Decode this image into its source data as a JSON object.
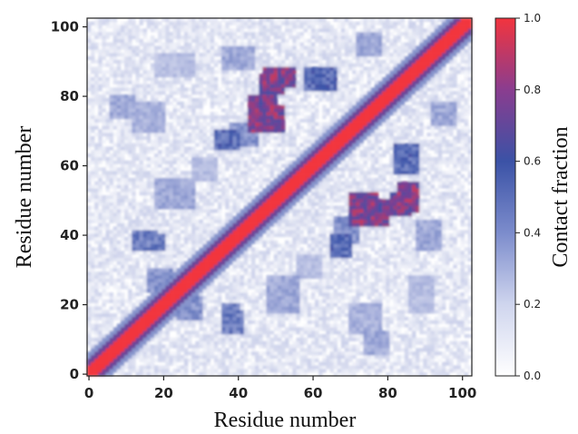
{
  "chart_data": {
    "type": "heatmap",
    "title": "",
    "xlabel": "Residue number",
    "ylabel": "Residue number",
    "xlim": [
      0,
      103
    ],
    "ylim": [
      0,
      103
    ],
    "xticks": [
      "0",
      "20",
      "40",
      "60",
      "80",
      "100"
    ],
    "yticks": [
      "0",
      "20",
      "40",
      "60",
      "80",
      "100"
    ],
    "colorbar": {
      "label": "Contact fraction",
      "range": [
        0.0,
        1.0
      ],
      "ticks": [
        "0.0",
        "0.2",
        "0.4",
        "0.6",
        "0.8",
        "1.0"
      ],
      "colors": [
        "#ffffff",
        "#9fa9d8",
        "#3a53a8",
        "#7a3f93",
        "#e23a4a",
        "#f2343e"
      ]
    },
    "n_residues": 103,
    "diagonal_value": 1.0,
    "background_value": 0.05,
    "contact_regions": [
      {
        "x": [
          43,
          52
        ],
        "y": [
          70,
          77
        ],
        "value": 0.6
      },
      {
        "x": [
          46,
          52
        ],
        "y": [
          81,
          86
        ],
        "value": 0.55
      },
      {
        "x": [
          83,
          88
        ],
        "y": [
          47,
          55
        ],
        "value": 0.6
      },
      {
        "x": [
          74,
          80
        ],
        "y": [
          43,
          50
        ],
        "value": 0.55
      },
      {
        "x": [
          34,
          40
        ],
        "y": [
          65,
          70
        ],
        "value": 0.35
      },
      {
        "x": [
          82,
          88
        ],
        "y": [
          58,
          66
        ],
        "value": 0.35
      },
      {
        "x": [
          12,
          18
        ],
        "y": [
          36,
          41
        ],
        "value": 0.3
      },
      {
        "x": [
          36,
          40
        ],
        "y": [
          14,
          20
        ],
        "value": 0.3
      },
      {
        "x": [
          16,
          22
        ],
        "y": [
          24,
          30
        ],
        "value": 0.25
      },
      {
        "x": [
          48,
          56
        ],
        "y": [
          18,
          28
        ],
        "value": 0.2
      },
      {
        "x": [
          66,
          72
        ],
        "y": [
          38,
          45
        ],
        "value": 0.25
      },
      {
        "x": [
          88,
          94
        ],
        "y": [
          36,
          44
        ],
        "value": 0.2
      },
      {
        "x": [
          6,
          12
        ],
        "y": [
          74,
          80
        ],
        "value": 0.2
      },
      {
        "x": [
          18,
          26
        ],
        "y": [
          86,
          92
        ],
        "value": 0.15
      },
      {
        "x": [
          92,
          98
        ],
        "y": [
          72,
          78
        ],
        "value": 0.2
      },
      {
        "x": [
          70,
          78
        ],
        "y": [
          12,
          20
        ],
        "value": 0.18
      },
      {
        "x": [
          28,
          34
        ],
        "y": [
          56,
          62
        ],
        "value": 0.15
      },
      {
        "x": [
          86,
          92
        ],
        "y": [
          20,
          28
        ],
        "value": 0.15
      }
    ]
  }
}
